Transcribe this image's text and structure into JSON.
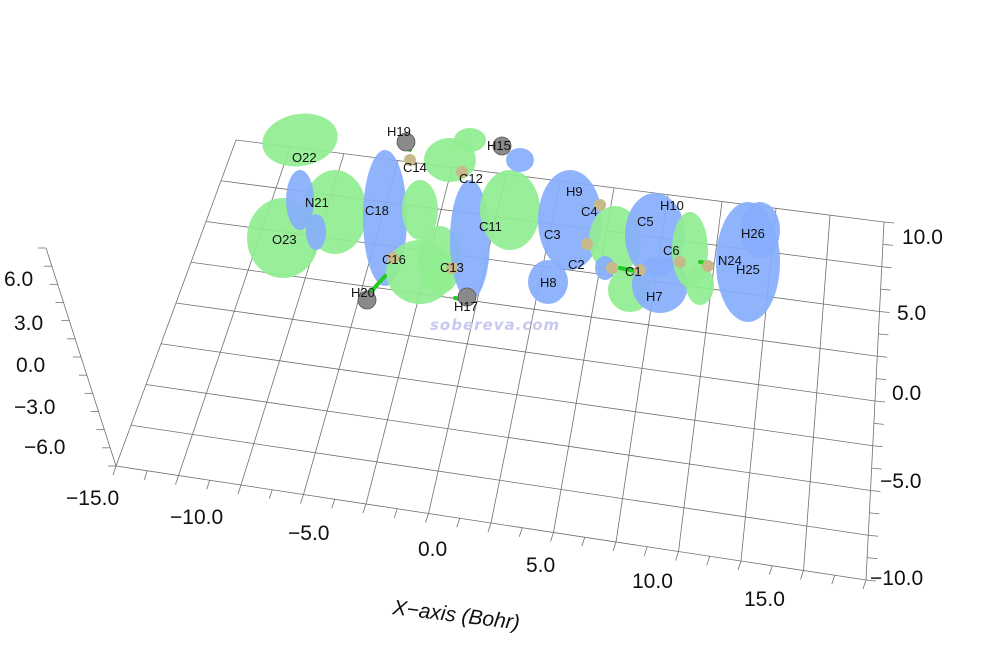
{
  "watermark": "sobereva.com",
  "axes": {
    "x_title": "X−axis (Bohr)",
    "x_ticks": [
      "−15.0",
      "−10.0",
      "−5.0",
      "0.0",
      "5.0",
      "10.0",
      "15.0"
    ],
    "y_ticks": [
      "10.0",
      "5.0",
      "0.0",
      "−5.0",
      "−10.0"
    ],
    "z_ticks": [
      "6.0",
      "3.0",
      "0.0",
      "−3.0",
      "−6.0"
    ]
  },
  "colors": {
    "positive_lobe": "#90ee90",
    "negative_lobe": "#87aefc",
    "carbon": "#c8b98a",
    "hydrogen": "#8a8a8a",
    "bond": "#22cc22"
  },
  "atoms": [
    "O22",
    "H19",
    "H15",
    "C14",
    "C12",
    "N21",
    "C18",
    "H9",
    "C4",
    "H10",
    "C5",
    "C11",
    "C3",
    "H26",
    "O23",
    "C16",
    "C13",
    "C2",
    "C6",
    "N24",
    "C1",
    "H25",
    "H8",
    "H20",
    "H7",
    "H17"
  ]
}
